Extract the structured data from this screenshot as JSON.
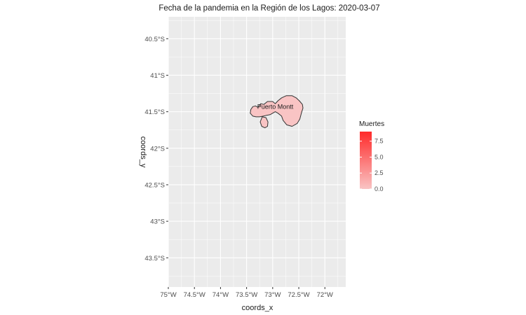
{
  "chart_data": {
    "type": "map",
    "title": "Fecha de la pandemia en la Región de los Lagos: 2020-03-07",
    "xlabel": "coords_x",
    "ylabel": "coords_y",
    "xlim": [
      -75.0,
      -71.6
    ],
    "ylim": [
      -43.9,
      -40.2
    ],
    "x_ticks": [
      {
        "value": -75.0,
        "label": "75°W"
      },
      {
        "value": -74.5,
        "label": "74.5°W"
      },
      {
        "value": -74.0,
        "label": "74°W"
      },
      {
        "value": -73.5,
        "label": "73.5°W"
      },
      {
        "value": -73.0,
        "label": "73°W"
      },
      {
        "value": -72.5,
        "label": "72.5°W"
      },
      {
        "value": -72.0,
        "label": "72°W"
      }
    ],
    "y_ticks": [
      {
        "value": -40.5,
        "label": "40.5°S"
      },
      {
        "value": -41.0,
        "label": "41°S"
      },
      {
        "value": -41.5,
        "label": "41.5°S"
      },
      {
        "value": -42.0,
        "label": "42°S"
      },
      {
        "value": -42.5,
        "label": "42.5°S"
      },
      {
        "value": -43.0,
        "label": "43°S"
      },
      {
        "value": -43.5,
        "label": "43.5°S"
      }
    ],
    "grid": true,
    "legend": {
      "title": "Muertes",
      "placement": "right",
      "range": [
        0,
        9
      ],
      "color_low": "#f9c4c4",
      "color_high": "#ff2a2a",
      "breaks": [
        {
          "value": 0,
          "label": "0.0"
        },
        {
          "value": 2.5,
          "label": "2.5"
        },
        {
          "value": 5,
          "label": "5.0"
        },
        {
          "value": 7.5,
          "label": "7.5"
        }
      ]
    },
    "regions": [
      {
        "name": "Puerto Montt",
        "muertes": 0,
        "label_position": [
          -72.95,
          -41.43
        ],
        "outline": [
          [
            -73.42,
            -41.47
          ],
          [
            -73.38,
            -41.43
          ],
          [
            -73.33,
            -41.42
          ],
          [
            -73.28,
            -41.44
          ],
          [
            -73.23,
            -41.39
          ],
          [
            -73.17,
            -41.4
          ],
          [
            -73.1,
            -41.36
          ],
          [
            -73.0,
            -41.36
          ],
          [
            -72.95,
            -41.39
          ],
          [
            -72.9,
            -41.35
          ],
          [
            -72.83,
            -41.31
          ],
          [
            -72.74,
            -41.28
          ],
          [
            -72.63,
            -41.28
          ],
          [
            -72.55,
            -41.31
          ],
          [
            -72.49,
            -41.35
          ],
          [
            -72.43,
            -41.4
          ],
          [
            -72.42,
            -41.45
          ],
          [
            -72.45,
            -41.52
          ],
          [
            -72.48,
            -41.6
          ],
          [
            -72.53,
            -41.66
          ],
          [
            -72.63,
            -41.7
          ],
          [
            -72.73,
            -41.68
          ],
          [
            -72.8,
            -41.62
          ],
          [
            -72.83,
            -41.56
          ],
          [
            -72.9,
            -41.52
          ],
          [
            -72.95,
            -41.5
          ],
          [
            -73.0,
            -41.52
          ],
          [
            -73.05,
            -41.54
          ],
          [
            -73.12,
            -41.55
          ],
          [
            -73.18,
            -41.56
          ],
          [
            -73.25,
            -41.57
          ],
          [
            -73.32,
            -41.57
          ],
          [
            -73.38,
            -41.56
          ],
          [
            -73.43,
            -41.52
          ]
        ]
      },
      {
        "name": "Puerto Montt (sur)",
        "muertes": 0,
        "outline": [
          [
            -73.2,
            -41.57
          ],
          [
            -73.13,
            -41.58
          ],
          [
            -73.09,
            -41.64
          ],
          [
            -73.1,
            -41.7
          ],
          [
            -73.15,
            -41.72
          ],
          [
            -73.21,
            -41.7
          ],
          [
            -73.24,
            -41.64
          ]
        ]
      }
    ],
    "region_fill": "#f9c4c4",
    "region_stroke": "#333333",
    "panel_color": "#ebebeb",
    "grid_color": "#ffffff",
    "label_mark": {
      "coords": [
        -72.95,
        -41.43
      ],
      "label": "Puerto Montt"
    }
  }
}
